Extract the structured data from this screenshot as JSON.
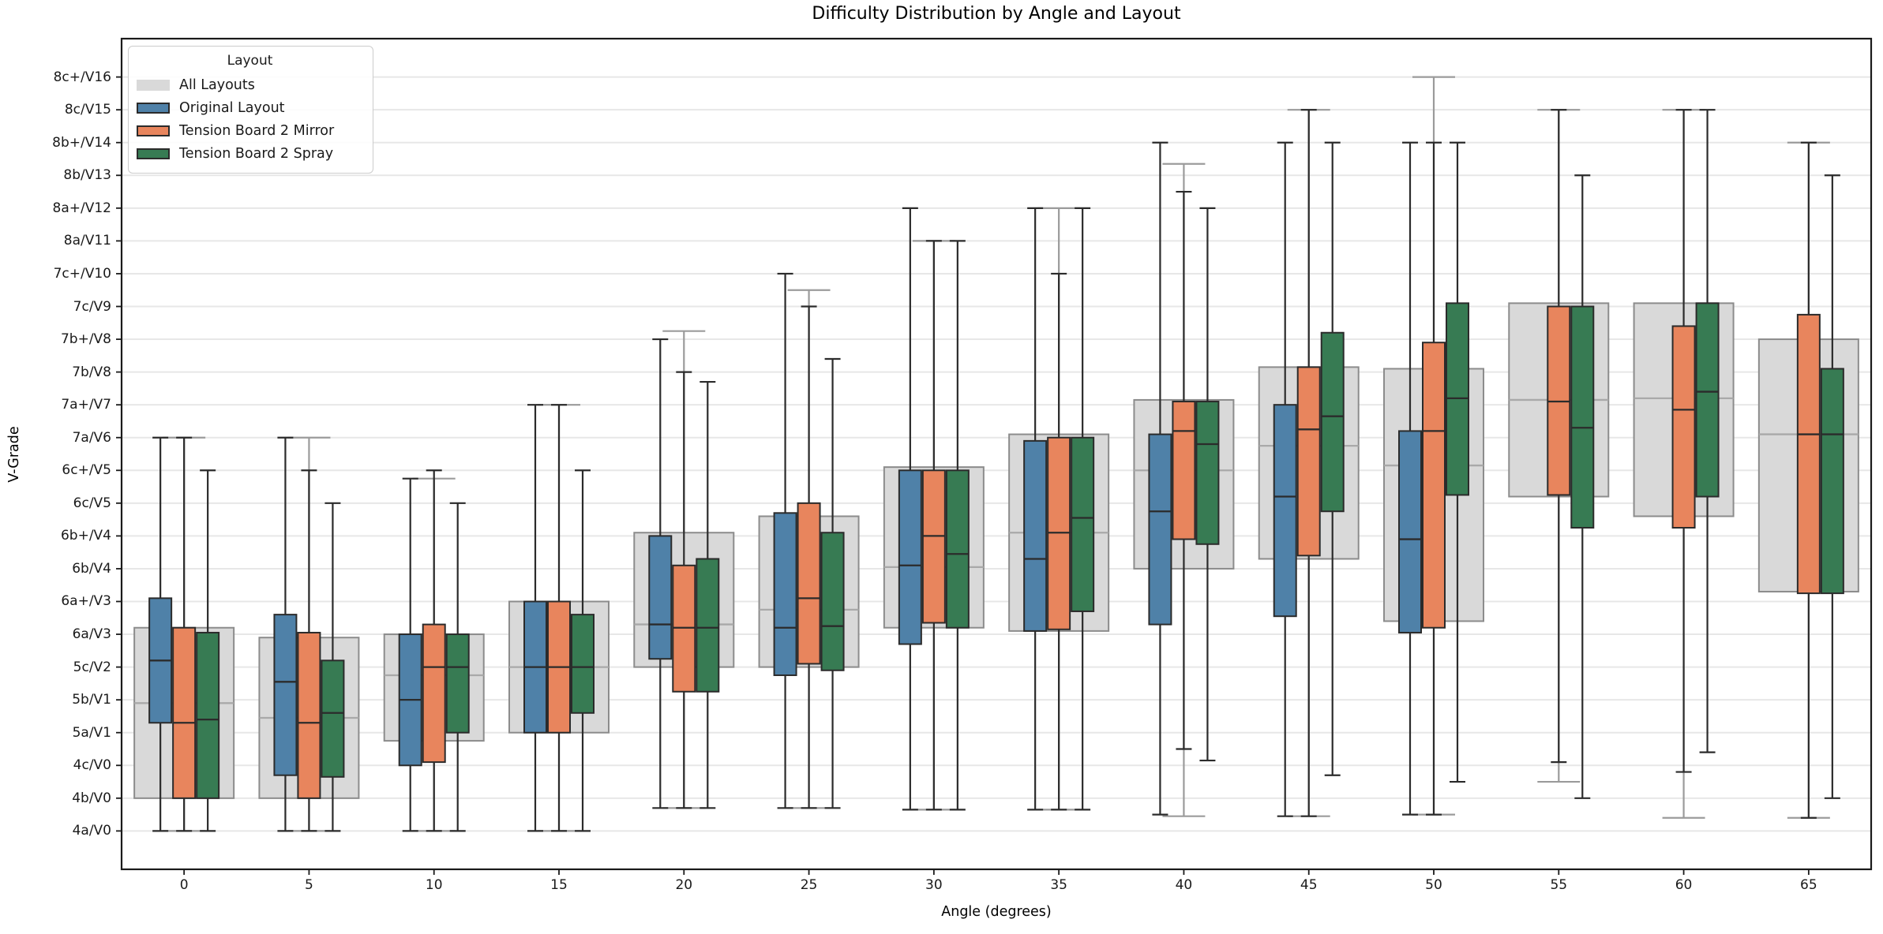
{
  "title": "Difficulty Distribution by Angle and Layout",
  "xlabel": "Angle (degrees)",
  "ylabel": "V-Grade",
  "legend": {
    "title": "Layout",
    "entries": [
      {
        "label": "All Layouts",
        "color": "#d9d9d9",
        "border": "none"
      },
      {
        "label": "Original Layout",
        "color": "#4f81a8",
        "border": "#2b2b2b"
      },
      {
        "label": "Tension Board 2 Mirror",
        "color": "#e8855d",
        "border": "#2b2b2b"
      },
      {
        "label": "Tension Board 2 Spray",
        "color": "#377b53",
        "border": "#2b2b2b"
      }
    ]
  },
  "axes": {
    "x_tick_labels": [
      "0",
      "5",
      "10",
      "15",
      "20",
      "25",
      "30",
      "35",
      "40",
      "45",
      "50",
      "55",
      "60",
      "65"
    ],
    "y_tick_labels": [
      "4a/V0",
      "4b/V0",
      "4c/V0",
      "5a/V1",
      "5b/V1",
      "5c/V2",
      "6a/V3",
      "6a+/V3",
      "6b/V4",
      "6b+/V4",
      "6c/V5",
      "6c+/V5",
      "7a/V6",
      "7a+/V7",
      "7b/V8",
      "7b+/V8",
      "7c/V9",
      "7c+/V10",
      "8a/V11",
      "8a+/V12",
      "8b/V13",
      "8b+/V14",
      "8c/V15",
      "8c+/V16"
    ]
  },
  "chart_data": {
    "type": "grouped_boxplot",
    "title": "Difficulty Distribution by Angle and Layout",
    "xlabel": "Angle (degrees)",
    "ylabel": "V-Grade",
    "grid": "horizontal-only",
    "legend_position": "upper-left",
    "categories_degrees": [
      0,
      5,
      10,
      15,
      20,
      25,
      30,
      35,
      40,
      45,
      50,
      55,
      60,
      65
    ],
    "grade_scale_note": "box values are indices into y_tick_labels: 0=4a/V0 ... 23=8c+/V16",
    "ylim_units": [
      -1.17,
      24.17
    ],
    "series": [
      {
        "name": "All Layouts",
        "role": "background-pooled",
        "fill": "#d9d9d9",
        "edge": "#8c8c8c",
        "median_color": "#a9a9a9",
        "whisker_color": "#9b9b9b",
        "boxes": [
          [
            0,
            1,
            3.9,
            6.2,
            12
          ],
          [
            0,
            1,
            3.45,
            5.9,
            12
          ],
          [
            0,
            2.75,
            4.75,
            6,
            10.75
          ],
          [
            0,
            3,
            5,
            7,
            13
          ],
          [
            0.7,
            5,
            6.3,
            9.1,
            15.25
          ],
          [
            0.7,
            5,
            6.75,
            9.6,
            16.5
          ],
          [
            0.65,
            6.2,
            8.05,
            11.1,
            18
          ],
          [
            0.65,
            6.1,
            9.1,
            12.1,
            19
          ],
          [
            0.45,
            8,
            11,
            13.15,
            20.35
          ],
          [
            0.45,
            8.3,
            11.75,
            14.15,
            22
          ],
          [
            0.5,
            6.4,
            11.15,
            14.1,
            23
          ],
          [
            1.5,
            10.2,
            13.15,
            16.1,
            22
          ],
          [
            0.4,
            9.6,
            13.2,
            16.1,
            22
          ],
          [
            0.4,
            7.3,
            12.1,
            15,
            21
          ]
        ]
      },
      {
        "name": "Original Layout",
        "role": "hue",
        "offset": -1,
        "fill": "#4f81a8",
        "edge": "#2b2b2b",
        "median_color": "#2b2b2b",
        "whisker_color": "#2b2b2b",
        "boxes": [
          [
            0,
            3.3,
            5.2,
            7.1,
            12
          ],
          [
            0,
            1.7,
            4.55,
            6.6,
            12
          ],
          [
            0,
            2,
            4,
            6,
            10.75
          ],
          [
            0,
            3,
            5,
            7,
            13
          ],
          [
            0.7,
            5.25,
            6.3,
            9,
            15
          ],
          [
            0.7,
            4.75,
            6.2,
            9.7,
            17
          ],
          [
            0.65,
            5.7,
            8.1,
            11,
            19
          ],
          [
            0.65,
            6.1,
            8.3,
            11.9,
            19
          ],
          [
            0.5,
            6.3,
            9.75,
            12.1,
            21
          ],
          [
            0.45,
            6.55,
            10.2,
            13,
            21
          ],
          [
            0.5,
            6.05,
            8.9,
            12.2,
            21
          ],
          null,
          null,
          null
        ]
      },
      {
        "name": "Tension Board 2 Mirror",
        "role": "hue",
        "offset": 0,
        "fill": "#e8855d",
        "edge": "#2b2b2b",
        "median_color": "#2b2b2b",
        "whisker_color": "#2b2b2b",
        "boxes": [
          [
            0,
            1,
            3.3,
            6.2,
            12
          ],
          [
            0,
            1,
            3.3,
            6.05,
            11
          ],
          [
            0,
            2.1,
            5,
            6.3,
            11
          ],
          [
            0,
            3,
            5,
            7,
            13
          ],
          [
            0.7,
            4.25,
            6.2,
            8.1,
            14
          ],
          [
            0.7,
            5.1,
            7.1,
            10,
            16
          ],
          [
            0.65,
            6.35,
            9,
            11,
            18
          ],
          [
            0.65,
            6.15,
            9.1,
            12,
            17
          ],
          [
            2.5,
            8.9,
            12.2,
            13.1,
            19.5
          ],
          [
            0.45,
            8.4,
            12.25,
            14.15,
            22
          ],
          [
            0.5,
            6.2,
            12.2,
            14.9,
            21
          ],
          [
            2.1,
            10.25,
            13.1,
            16,
            22
          ],
          [
            1.8,
            9.25,
            12.85,
            15.4,
            22
          ],
          [
            0.4,
            7.25,
            12.1,
            15.75,
            21
          ]
        ]
      },
      {
        "name": "Tension Board 2 Spray",
        "role": "hue",
        "offset": 1,
        "fill": "#377b53",
        "edge": "#2b2b2b",
        "median_color": "#2b2b2b",
        "whisker_color": "#2b2b2b",
        "boxes": [
          [
            0,
            1,
            3.4,
            6.05,
            11
          ],
          [
            0,
            1.65,
            3.6,
            5.2,
            10
          ],
          [
            0,
            3,
            5,
            6,
            10
          ],
          [
            0,
            3.6,
            5,
            6.6,
            11
          ],
          [
            0.7,
            4.25,
            6.2,
            8.3,
            13.7
          ],
          [
            0.7,
            4.9,
            6.25,
            9.1,
            14.4
          ],
          [
            0.65,
            6.2,
            8.45,
            11,
            18
          ],
          [
            0.65,
            6.7,
            9.55,
            12,
            19
          ],
          [
            2.15,
            8.75,
            11.8,
            13.1,
            19
          ],
          [
            1.7,
            9.75,
            12.65,
            15.2,
            21
          ],
          [
            1.5,
            10.25,
            13.2,
            16.1,
            21
          ],
          [
            1,
            9.25,
            12.3,
            16,
            20
          ],
          [
            2.4,
            10.2,
            13.4,
            16.1,
            22
          ],
          [
            1,
            7.25,
            12.1,
            14.1,
            20
          ]
        ]
      }
    ]
  },
  "style_colors": {
    "background": "#ffffff",
    "spine": "#1a1a1a",
    "gridline": "#e7e7e7",
    "tick": "#1a1a1a",
    "text": "#000000"
  }
}
